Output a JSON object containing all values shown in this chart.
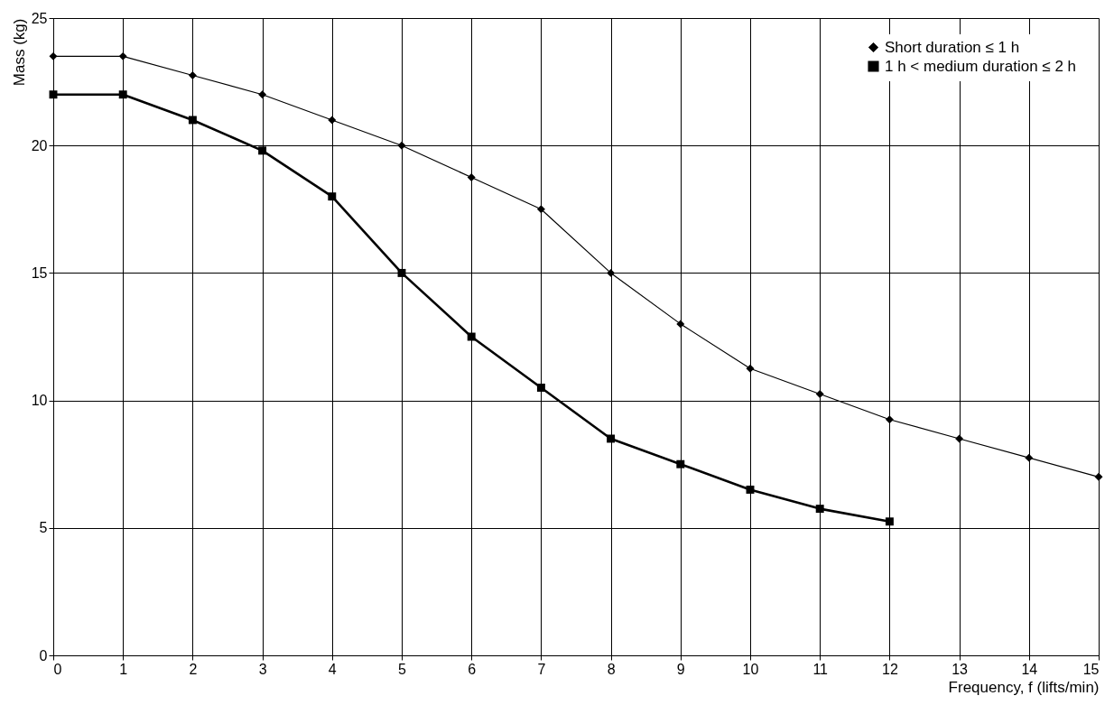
{
  "chart_data": {
    "type": "line",
    "xlabel": "Frequency, f (lifts/min)",
    "ylabel": "Mass (kg)",
    "xlim": [
      0,
      15
    ],
    "ylim": [
      0,
      25
    ],
    "xticks": [
      0,
      1,
      2,
      3,
      4,
      5,
      6,
      7,
      8,
      9,
      10,
      11,
      12,
      13,
      14,
      15
    ],
    "yticks": [
      0,
      5,
      10,
      15,
      20,
      25
    ],
    "grid": true,
    "legend": "top right",
    "line_style": "solid",
    "series": [
      {
        "name": "Short duration ≤ 1 h",
        "color": "#000000",
        "marker": "diamond",
        "x": [
          0,
          1,
          2,
          3,
          4,
          5,
          6,
          7,
          8,
          9,
          10,
          11,
          12,
          13,
          14,
          15
        ],
        "values": [
          23.5,
          23.5,
          22.75,
          22,
          21,
          20,
          18.75,
          17.5,
          15,
          13,
          11.25,
          10.25,
          9.25,
          8.5,
          7.75,
          7
        ]
      },
      {
        "name": "1 h < medium duration ≤ 2 h",
        "color": "#000000",
        "marker": "square",
        "x": [
          0,
          1,
          2,
          3,
          4,
          5,
          6,
          7,
          8,
          9,
          10,
          11,
          12
        ],
        "values": [
          22,
          22,
          21,
          19.8,
          18,
          15,
          12.5,
          10.5,
          8.5,
          7.5,
          6.5,
          5.75,
          5.25
        ]
      }
    ]
  }
}
